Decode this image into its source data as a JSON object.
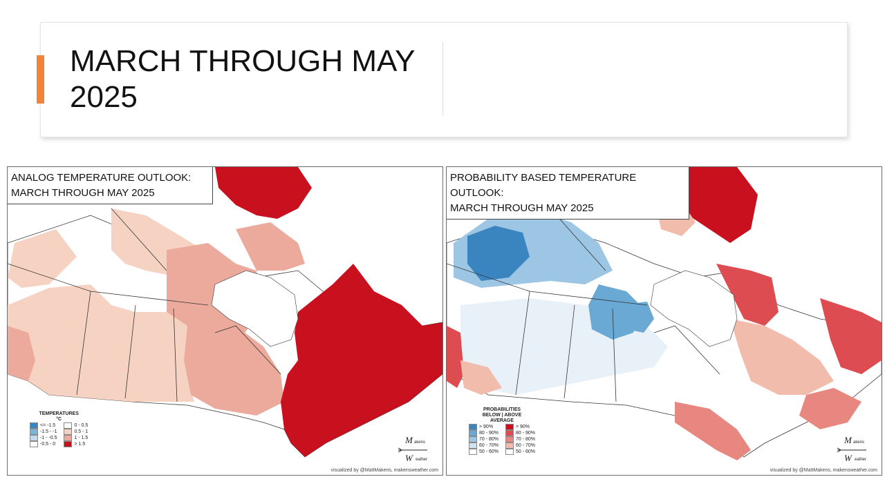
{
  "slide": {
    "title": "MARCH THROUGH MAY 2025"
  },
  "colors": {
    "accent": "#f0853a"
  },
  "maps": [
    {
      "title_line1": "ANALOG TEMPERATURE OUTLOOK:",
      "title_line2": "MARCH THROUGH MAY 2025",
      "legend": {
        "title": "TEMPERATURES",
        "unit": "°C",
        "items_left": [
          {
            "label": "<= -1.5",
            "color": "#3a84c0"
          },
          {
            "label": "-1.5 - -1",
            "color": "#7db5da"
          },
          {
            "label": "-1 - -0.5",
            "color": "#c2dcee"
          },
          {
            "label": "-0.5 - 0",
            "color": "#ffffff"
          }
        ],
        "items_right": [
          {
            "label": "0 - 0.5",
            "color": "#ffffff"
          },
          {
            "label": "0.5 - 1",
            "color": "#f6d2c2"
          },
          {
            "label": "1 - 1.5",
            "color": "#ebaa9b"
          },
          {
            "label": "> 1.5",
            "color": "#c8101f"
          }
        ]
      },
      "logo": "MakensWeather",
      "credit": "visualized by @MattMakens, makensweather.com"
    },
    {
      "title_line1": "PROBABILITY BASED TEMPERATURE OUTLOOK:",
      "title_line2": "MARCH THROUGH MAY 2025",
      "legend": {
        "title_line1": "PROBABILITIES",
        "title_line2": "BELOW  |  ABOVE",
        "title_line3": "AVERAGE",
        "items_left": [
          {
            "label": "> 90%",
            "color": "#3a84c0"
          },
          {
            "label": "80 - 90%",
            "color": "#6aa9d3"
          },
          {
            "label": "70 - 80%",
            "color": "#9cc6e3"
          },
          {
            "label": "60 - 70%",
            "color": "#cfe3f1"
          },
          {
            "label": "50 - 60%",
            "color": "#ffffff"
          }
        ],
        "items_right": [
          {
            "label": "> 90%",
            "color": "#c8101f"
          },
          {
            "label": "80 - 90%",
            "color": "#dc4c50"
          },
          {
            "label": "70 - 80%",
            "color": "#e8877f"
          },
          {
            "label": "60 - 70%",
            "color": "#f2bcad"
          },
          {
            "label": "50 - 60%",
            "color": "#ffffff"
          }
        ]
      },
      "logo": "MakensWeather",
      "credit": "visualized by @MattMakens, makensweather.com"
    }
  ]
}
